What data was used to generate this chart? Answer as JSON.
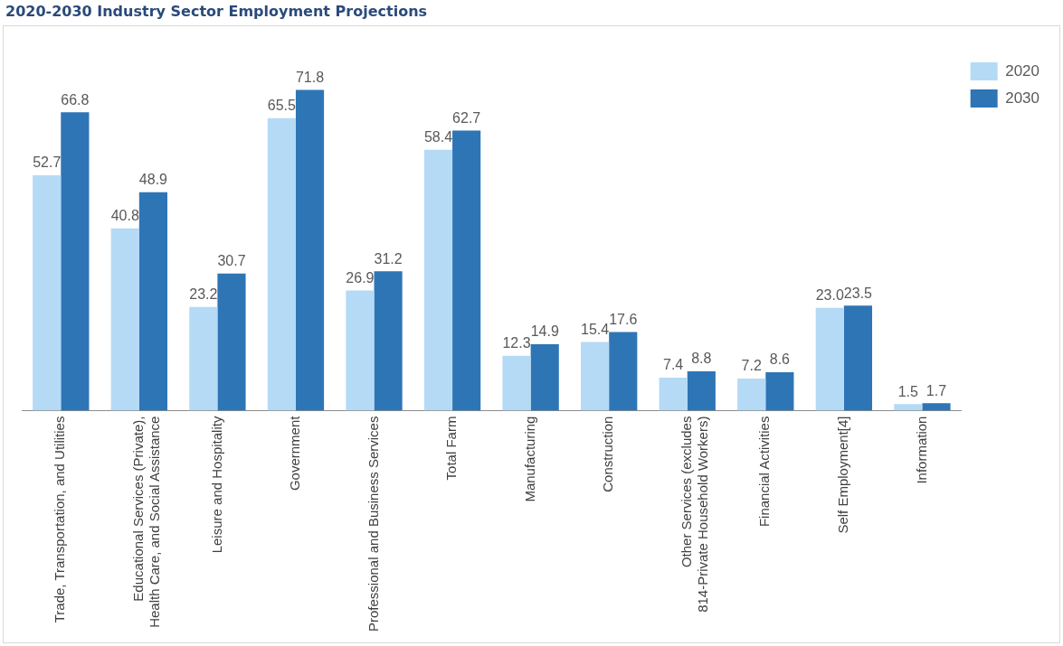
{
  "chart_data": {
    "type": "bar",
    "title": "2020-2030 Industry Sector Employment Projections",
    "categories": [
      "Trade, Transportation, and Utilities",
      "Educational Services (Private),\nHealth Care, and Social Assistance",
      "Leisure and Hospitality",
      "Government",
      "Professional and Business Services",
      "Total Farm",
      "Manufacturing",
      "Construction",
      "Other Services (excludes\n814-Private Household Workers)",
      "Financial Activities",
      "Self Employment[4]",
      "Information"
    ],
    "series": [
      {
        "name": "2020",
        "color": "#b4daf6",
        "values": [
          52.7,
          40.8,
          23.2,
          65.5,
          26.9,
          58.4,
          12.3,
          15.4,
          7.4,
          7.2,
          23.0,
          1.5
        ],
        "value_labels": [
          "52.7",
          "40.8",
          "23.2",
          "65.5",
          "26.9",
          "58.4",
          "12.3",
          "15.4",
          "7.4",
          "7.2",
          "23.0",
          "1.5"
        ]
      },
      {
        "name": "2030",
        "color": "#2e75b6",
        "values": [
          66.8,
          48.9,
          30.7,
          71.8,
          31.2,
          62.7,
          14.9,
          17.6,
          8.8,
          8.6,
          23.5,
          1.7
        ],
        "value_labels": [
          "66.8",
          "48.9",
          "30.7",
          "71.8",
          "31.2",
          "62.7",
          "14.9",
          "17.6",
          "8.8",
          "8.6",
          "23.5",
          "1.7"
        ]
      }
    ],
    "legend": "top right",
    "grid": false
  }
}
